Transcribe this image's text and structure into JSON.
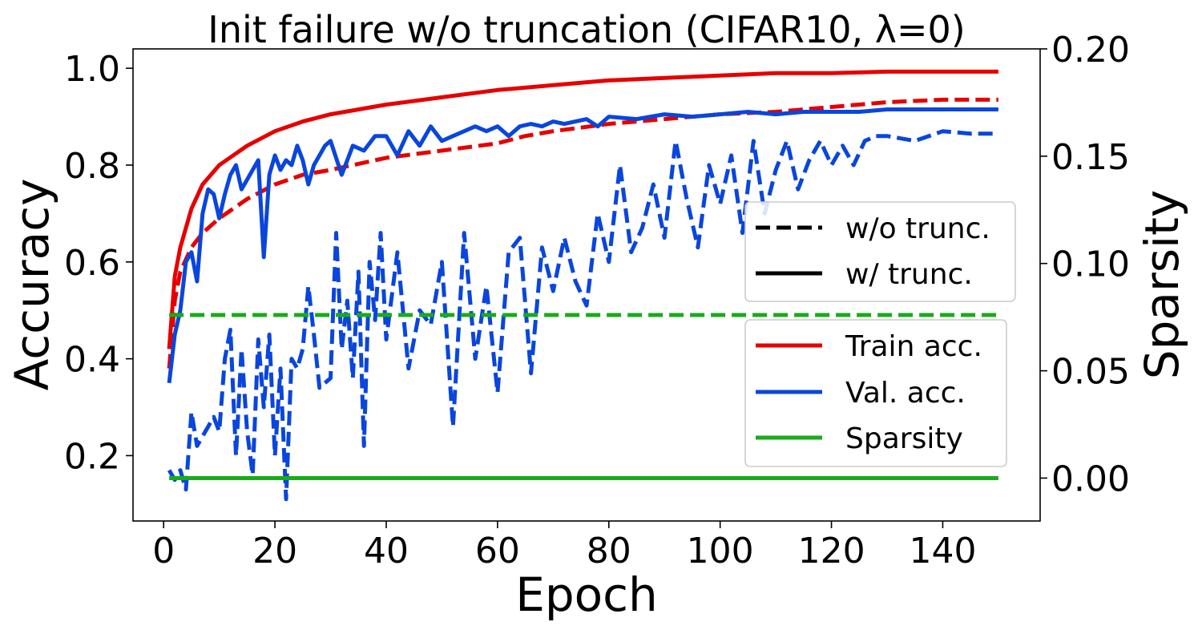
{
  "chart_data": {
    "type": "line",
    "title": "Init failure w/o truncation (CIFAR10, λ=0)",
    "xlabel": "Epoch",
    "ylabel": "Accuracy",
    "ylabel_right": "Sparsity",
    "xlim": [
      -5.5,
      157.5
    ],
    "ylim": [
      0.065,
      1.04
    ],
    "ylim_right": [
      -0.02,
      0.2
    ],
    "x_ticks": [
      0,
      20,
      40,
      60,
      80,
      100,
      120,
      140
    ],
    "y_ticks": [
      0.2,
      0.4,
      0.6,
      0.8,
      1.0
    ],
    "y_ticks_right": [
      0.0,
      0.05,
      0.1,
      0.15,
      0.2
    ],
    "x_tick_labels": [
      "0",
      "20",
      "40",
      "60",
      "80",
      "100",
      "120",
      "140"
    ],
    "y_tick_labels": [
      "0.2",
      "0.4",
      "0.6",
      "0.8",
      "1.0"
    ],
    "y_tick_labels_right": [
      "0.00",
      "0.05",
      "0.10",
      "0.15",
      "0.20"
    ],
    "grid": false,
    "colors": {
      "train": "#e60000",
      "val": "#0a46dc",
      "sparsity": "#1aab1a"
    },
    "series": [
      {
        "name": "Train acc.",
        "truncation": "w/o trunc.",
        "axis": "left",
        "style": "dashed",
        "color": "#e60000",
        "x": [
          1,
          2,
          3,
          5,
          7,
          10,
          15,
          20,
          25,
          30,
          40,
          50,
          60,
          65,
          70,
          80,
          90,
          100,
          110,
          120,
          130,
          140,
          150
        ],
        "y": [
          0.38,
          0.52,
          0.58,
          0.63,
          0.66,
          0.69,
          0.73,
          0.76,
          0.78,
          0.79,
          0.815,
          0.83,
          0.845,
          0.86,
          0.87,
          0.885,
          0.895,
          0.905,
          0.91,
          0.92,
          0.93,
          0.935,
          0.935
        ]
      },
      {
        "name": "Train acc.",
        "truncation": "w/ trunc.",
        "axis": "left",
        "style": "solid",
        "color": "#e60000",
        "x": [
          1,
          2,
          3,
          5,
          7,
          10,
          15,
          20,
          25,
          30,
          40,
          50,
          60,
          70,
          80,
          90,
          100,
          110,
          120,
          130,
          140,
          150
        ],
        "y": [
          0.42,
          0.57,
          0.63,
          0.71,
          0.76,
          0.8,
          0.84,
          0.87,
          0.89,
          0.905,
          0.925,
          0.94,
          0.955,
          0.965,
          0.975,
          0.98,
          0.985,
          0.99,
          0.99,
          0.993,
          0.993,
          0.993
        ]
      },
      {
        "name": "Val. acc.",
        "truncation": "w/o trunc.",
        "axis": "left",
        "style": "dashed",
        "color": "#0a46dc",
        "x": [
          1,
          2,
          3,
          4,
          5,
          6,
          7,
          8,
          9,
          10,
          11,
          12,
          13,
          14,
          15,
          16,
          17,
          18,
          19,
          20,
          21,
          22,
          23,
          24,
          25,
          26,
          27,
          28,
          29,
          30,
          31,
          32,
          33,
          34,
          35,
          36,
          37,
          38,
          39,
          40,
          42,
          44,
          46,
          48,
          50,
          52,
          54,
          56,
          58,
          60,
          62,
          64,
          66,
          68,
          70,
          72,
          74,
          76,
          78,
          80,
          82,
          84,
          86,
          88,
          90,
          92,
          94,
          96,
          98,
          100,
          102,
          104,
          106,
          108,
          110,
          112,
          114,
          116,
          118,
          120,
          122,
          124,
          126,
          128,
          130,
          135,
          140,
          145,
          150
        ],
        "y": [
          0.17,
          0.15,
          0.17,
          0.13,
          0.29,
          0.22,
          0.24,
          0.26,
          0.28,
          0.25,
          0.4,
          0.46,
          0.2,
          0.42,
          0.25,
          0.16,
          0.44,
          0.3,
          0.45,
          0.2,
          0.38,
          0.11,
          0.4,
          0.38,
          0.42,
          0.55,
          0.45,
          0.34,
          0.35,
          0.36,
          0.66,
          0.42,
          0.52,
          0.36,
          0.58,
          0.22,
          0.6,
          0.48,
          0.66,
          0.44,
          0.62,
          0.38,
          0.5,
          0.47,
          0.6,
          0.26,
          0.66,
          0.4,
          0.55,
          0.33,
          0.62,
          0.65,
          0.37,
          0.63,
          0.54,
          0.65,
          0.56,
          0.51,
          0.7,
          0.6,
          0.8,
          0.62,
          0.67,
          0.76,
          0.65,
          0.85,
          0.73,
          0.63,
          0.8,
          0.72,
          0.82,
          0.66,
          0.85,
          0.7,
          0.79,
          0.85,
          0.75,
          0.81,
          0.85,
          0.8,
          0.84,
          0.8,
          0.85,
          0.86,
          0.86,
          0.85,
          0.87,
          0.865,
          0.865
        ]
      },
      {
        "name": "Val. acc.",
        "truncation": "w/ trunc.",
        "axis": "left",
        "style": "solid",
        "color": "#0a46dc",
        "x": [
          1,
          2,
          3,
          4,
          5,
          6,
          7,
          8,
          9,
          10,
          11,
          12,
          13,
          14,
          15,
          16,
          17,
          18,
          19,
          20,
          21,
          22,
          23,
          24,
          25,
          26,
          27,
          28,
          29,
          30,
          32,
          34,
          36,
          38,
          40,
          42,
          44,
          46,
          48,
          50,
          52,
          54,
          56,
          58,
          60,
          62,
          64,
          66,
          68,
          70,
          72,
          74,
          76,
          78,
          80,
          85,
          90,
          95,
          100,
          105,
          110,
          115,
          120,
          125,
          130,
          135,
          140,
          145,
          150
        ],
        "y": [
          0.35,
          0.45,
          0.5,
          0.6,
          0.62,
          0.56,
          0.7,
          0.75,
          0.74,
          0.69,
          0.74,
          0.78,
          0.8,
          0.75,
          0.77,
          0.79,
          0.81,
          0.61,
          0.78,
          0.82,
          0.79,
          0.81,
          0.8,
          0.84,
          0.81,
          0.76,
          0.8,
          0.82,
          0.84,
          0.85,
          0.78,
          0.84,
          0.83,
          0.86,
          0.86,
          0.82,
          0.87,
          0.84,
          0.88,
          0.85,
          0.86,
          0.87,
          0.88,
          0.87,
          0.88,
          0.86,
          0.88,
          0.885,
          0.88,
          0.89,
          0.885,
          0.89,
          0.895,
          0.88,
          0.9,
          0.895,
          0.905,
          0.9,
          0.905,
          0.91,
          0.905,
          0.91,
          0.91,
          0.91,
          0.915,
          0.915,
          0.915,
          0.915,
          0.915
        ]
      },
      {
        "name": "Sparsity",
        "truncation": "w/o trunc.",
        "axis": "right",
        "style": "dashed",
        "color": "#1aab1a",
        "x": [
          1,
          150
        ],
        "y": [
          0.076,
          0.076
        ]
      },
      {
        "name": "Sparsity",
        "truncation": "w/ trunc.",
        "axis": "right",
        "style": "solid",
        "color": "#1aab1a",
        "x": [
          1,
          150
        ],
        "y": [
          0.0,
          0.0
        ]
      }
    ],
    "legend_style": {
      "placement": "right",
      "entries": [
        "w/o trunc.",
        "w/ trunc."
      ]
    },
    "legend_metric": {
      "placement": "lower-right",
      "entries": [
        "Train acc.",
        "Val. acc.",
        "Sparsity"
      ]
    }
  }
}
